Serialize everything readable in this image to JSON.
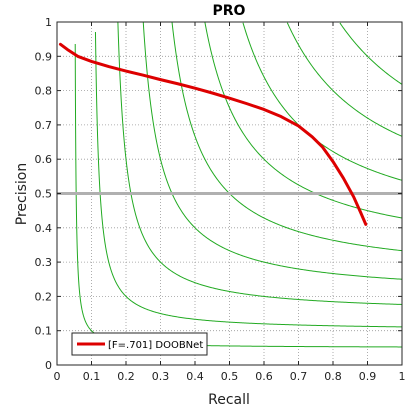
{
  "chart_data": {
    "type": "line",
    "title": "PRO",
    "xlabel": "Recall",
    "ylabel": "Precision",
    "xlim": [
      0,
      1
    ],
    "ylim": [
      0,
      1
    ],
    "xticks": [
      "0",
      "0.1",
      "0.2",
      "0.3",
      "0.4",
      "0.5",
      "0.6",
      "0.7",
      "0.8",
      "0.9",
      "1"
    ],
    "yticks": [
      "0",
      "0.1",
      "0.2",
      "0.3",
      "0.4",
      "0.5",
      "0.6",
      "0.7",
      "0.8",
      "0.9",
      "1"
    ],
    "grid": true,
    "legend_position": "bottom-left",
    "reference_line": {
      "y": 0.5,
      "color": "#b0b0b0"
    },
    "iso_f_contours": {
      "color": "#22aa22",
      "f_values": [
        0.1,
        0.2,
        0.3,
        0.4,
        0.5,
        0.6,
        0.7,
        0.8,
        0.9
      ]
    },
    "series": [
      {
        "name": "[F=.701] DOOBNet",
        "color": "#dd0000",
        "x": [
          0.01,
          0.03,
          0.06,
          0.1,
          0.15,
          0.2,
          0.25,
          0.3,
          0.35,
          0.4,
          0.45,
          0.5,
          0.55,
          0.6,
          0.65,
          0.7,
          0.74,
          0.77,
          0.8,
          0.83,
          0.86,
          0.88,
          0.895
        ],
        "y": [
          0.935,
          0.92,
          0.9,
          0.885,
          0.87,
          0.857,
          0.845,
          0.832,
          0.82,
          0.807,
          0.793,
          0.778,
          0.762,
          0.745,
          0.724,
          0.697,
          0.665,
          0.635,
          0.593,
          0.545,
          0.49,
          0.445,
          0.41
        ]
      }
    ]
  }
}
